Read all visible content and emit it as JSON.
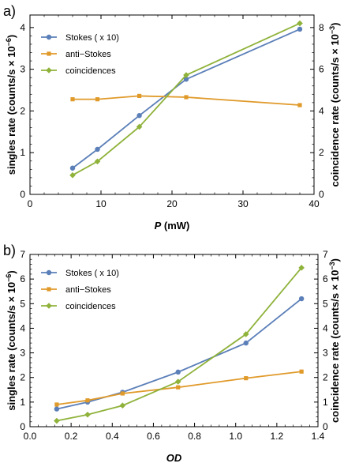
{
  "chart_data": [
    {
      "panel_label": "a)",
      "type": "line",
      "xlabel": "P",
      "xunit": " (mW)",
      "ylabel": "singles rate (counts/s × 10",
      "ylabel_exp": "−6",
      "ylabel_close": ")",
      "y2label": "coincidence rate (counts/s × 10",
      "y2label_exp": "−3",
      "y2label_close": ")",
      "xlim": [
        0,
        40
      ],
      "ylim": [
        0,
        4.3
      ],
      "y2lim": [
        0,
        8.6
      ],
      "xticks": [
        0,
        10,
        20,
        30,
        40
      ],
      "yticks": [
        0,
        1,
        2,
        3,
        4
      ],
      "y2ticks": [
        0,
        2,
        4,
        6,
        8
      ],
      "legend_position": "top-left",
      "series": [
        {
          "name": "Stokes ( x 10)",
          "axis": "left",
          "color": "#5b7fb8",
          "marker": "circle",
          "x": [
            6,
            9.5,
            15.4,
            22,
            38
          ],
          "y": [
            0.63,
            1.08,
            1.89,
            2.76,
            3.96
          ]
        },
        {
          "name": "anti−Stokes",
          "axis": "left",
          "color": "#e09a2a",
          "marker": "square",
          "x": [
            6,
            9.5,
            15.4,
            22,
            38
          ],
          "y": [
            2.28,
            2.28,
            2.36,
            2.33,
            2.14
          ]
        },
        {
          "name": "coincidences",
          "axis": "right",
          "color": "#8fb23a",
          "marker": "diamond",
          "x": [
            6,
            9.5,
            15.4,
            22,
            38
          ],
          "y": [
            0.92,
            1.58,
            3.24,
            5.72,
            8.2
          ]
        }
      ]
    },
    {
      "panel_label": "b)",
      "type": "line",
      "xlabel": "OD",
      "xunit": "",
      "ylabel": "singles rate (counts/s × 10",
      "ylabel_exp": "−6",
      "ylabel_close": ")",
      "y2label": "coincidence rate (counts/s × 10",
      "y2label_exp": "−3",
      "y2label_close": ")",
      "xlim": [
        0,
        1.4
      ],
      "ylim": [
        0,
        7
      ],
      "y2lim": [
        0,
        7
      ],
      "xticks": [
        0.0,
        0.2,
        0.4,
        0.6,
        0.8,
        1.0,
        1.2,
        1.4
      ],
      "xtick_labels": [
        "0.0",
        "0.2",
        "0.4",
        "0.6",
        "0.8",
        "1.0",
        "1.2",
        "1.4"
      ],
      "yticks": [
        0,
        1,
        2,
        3,
        4,
        5,
        6,
        7
      ],
      "y2ticks": [
        0,
        1,
        2,
        3,
        4,
        5,
        6,
        7
      ],
      "legend_position": "top-left",
      "series": [
        {
          "name": "Stokes ( x 10)",
          "axis": "left",
          "color": "#5b7fb8",
          "marker": "circle",
          "x": [
            0.13,
            0.28,
            0.45,
            0.72,
            1.05,
            1.32
          ],
          "y": [
            0.72,
            1.0,
            1.4,
            2.22,
            3.4,
            5.2
          ]
        },
        {
          "name": "anti−Stokes",
          "axis": "left",
          "color": "#e09a2a",
          "marker": "square",
          "x": [
            0.13,
            0.28,
            0.45,
            0.72,
            1.05,
            1.32
          ],
          "y": [
            0.9,
            1.07,
            1.35,
            1.6,
            1.97,
            2.24
          ]
        },
        {
          "name": "coincidences",
          "axis": "right",
          "color": "#8fb23a",
          "marker": "diamond",
          "x": [
            0.13,
            0.28,
            0.45,
            0.72,
            1.05,
            1.32
          ],
          "y": [
            0.24,
            0.49,
            0.86,
            1.83,
            3.76,
            6.46
          ]
        }
      ]
    }
  ]
}
